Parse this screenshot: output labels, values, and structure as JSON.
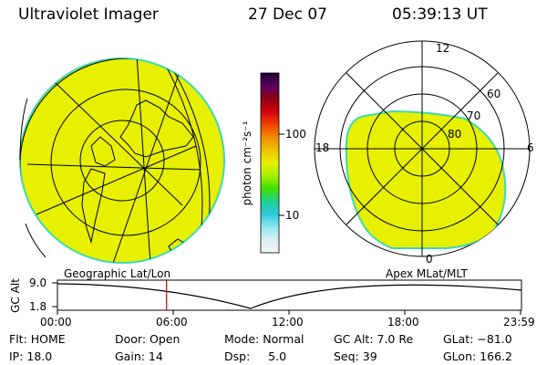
{
  "header": {
    "instrument": "Ultraviolet Imager",
    "date": "27 Dec 07",
    "time": "05:39:13 UT"
  },
  "colors": {
    "aurora_fill": "#e6f000",
    "aurora_edge": "#3fd8b0",
    "grid_line": "#000000",
    "time_marker": "#e00000"
  },
  "colorbar": {
    "unit_label": "photon cm⁻²s⁻¹",
    "ticks": [
      "100",
      "10"
    ],
    "colors_top_to_bottom": [
      "#1a0030",
      "#5a0060",
      "#8e0010",
      "#d00010",
      "#f04000",
      "#f08c00",
      "#f0c000",
      "#e6f000",
      "#a8f000",
      "#40e000",
      "#20d090",
      "#30c8e0",
      "#90e8f0",
      "#d8f0f4",
      "#f4f4f4"
    ]
  },
  "polar_plot": {
    "mlt_labels": [
      "12",
      "18",
      "6",
      "0"
    ],
    "mlat_labels": [
      "60",
      "70",
      "80"
    ]
  },
  "altitude_plot": {
    "left_title": "Geographic Lat/Lon",
    "right_title": "Apex MLat/MLT",
    "ylabel": "GC Alt",
    "y_ticks": [
      "9.0",
      "1.8"
    ],
    "x_ticks": [
      "00:00",
      "06:00",
      "12:00",
      "18:00",
      "23:59"
    ],
    "marker_time": "05:39"
  },
  "status": {
    "flt": "Flt: HOME",
    "ip": "IP: 18.0",
    "door": "Door: Open",
    "gain": "Gain: 14",
    "mode": "Mode: Normal",
    "dsp": "Dsp:     5.0",
    "gc_alt": "GC Alt: 7.0 Re",
    "seq": "Seq: 39",
    "glat": "GLat: −81.0",
    "glon": "GLon: 166.2"
  }
}
